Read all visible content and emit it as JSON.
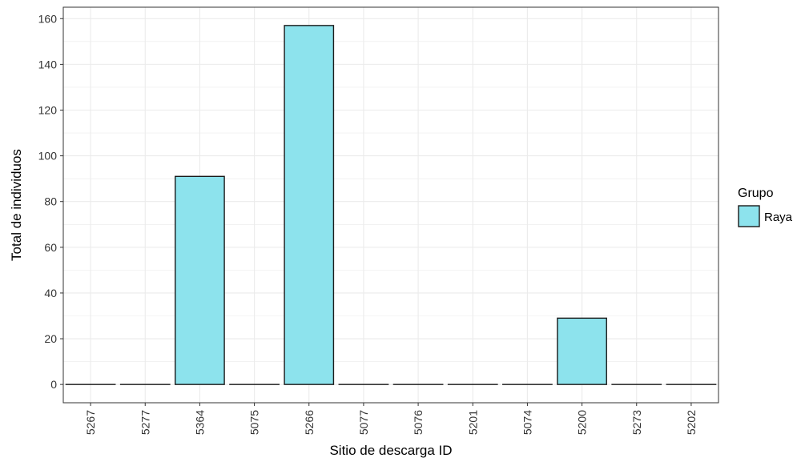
{
  "chart_data": {
    "type": "bar",
    "categories": [
      "5267",
      "5277",
      "5364",
      "5075",
      "5266",
      "5077",
      "5076",
      "5201",
      "5074",
      "5200",
      "5273",
      "5202"
    ],
    "series": [
      {
        "name": "Raya",
        "values": [
          0,
          0,
          91,
          0,
          157,
          0,
          0,
          0,
          0,
          29,
          0,
          0
        ]
      }
    ],
    "xlabel": "Sitio de descarga ID",
    "ylabel": "Total de individuos",
    "ylim": [
      -8,
      165
    ],
    "yticks": [
      0,
      20,
      40,
      60,
      80,
      100,
      120,
      140,
      160
    ],
    "grid": true,
    "legend": {
      "title": "Grupo",
      "position": "right"
    },
    "colors": {
      "bar_fill": "#8de3ed",
      "bar_stroke": "#1a1a1a",
      "grid": "#ebebeb",
      "panel_border": "#333333"
    }
  }
}
